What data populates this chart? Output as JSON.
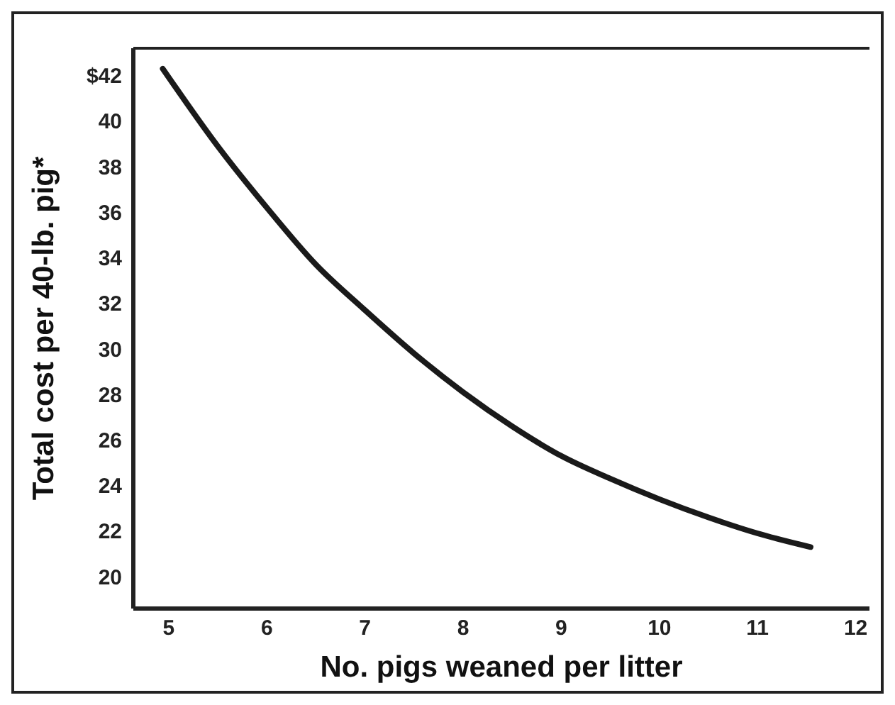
{
  "chart_data": {
    "type": "line",
    "xlabel": "No. pigs weaned per litter",
    "ylabel": "Total cost per 40-lb. pig*",
    "x": [
      4.94,
      5.5,
      6,
      6.5,
      7,
      7.5,
      8,
      8.5,
      9,
      9.5,
      10,
      10.5,
      11,
      11.54
    ],
    "series": [
      {
        "color": "#1a1a1a",
        "values": [
          42.3,
          38.9,
          36.2,
          33.7,
          31.7,
          29.8,
          28.1,
          26.6,
          25.3,
          24.3,
          23.4,
          22.6,
          21.9,
          21.3
        ]
      }
    ],
    "xlim": [
      4.64,
      12.14
    ],
    "xticks": [
      5,
      6,
      7,
      8,
      9,
      10,
      11,
      12
    ],
    "ylim": [
      18.6,
      43.2
    ],
    "yticks": [
      20,
      22,
      24,
      26,
      28,
      30,
      32,
      34,
      36,
      38,
      40,
      {
        "value": 42,
        "label": "$42"
      }
    ],
    "marker": "none",
    "line_style": "solid"
  }
}
